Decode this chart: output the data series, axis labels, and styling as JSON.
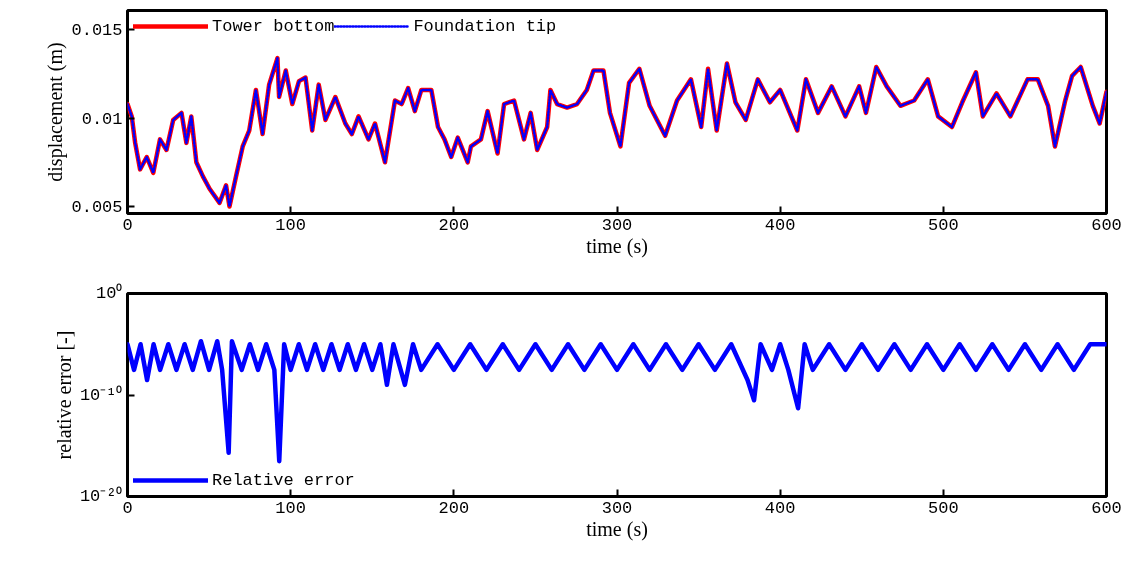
{
  "chart_data": [
    {
      "type": "line",
      "xlabel": "time (s)",
      "ylabel": "displacement (m)",
      "xlim": [
        0,
        600
      ],
      "xticks": [
        0,
        100,
        200,
        300,
        400,
        500,
        600
      ],
      "ylim": [
        0.0046,
        0.0161
      ],
      "yticks": [
        0.005,
        0.01,
        0.015
      ],
      "legend": "top left",
      "x": [
        0,
        2.6,
        4.7,
        7.7,
        11.8,
        15.8,
        19.9,
        23.9,
        28.0,
        33.1,
        36.1,
        39.1,
        42.2,
        46.2,
        50.3,
        56.4,
        60.4,
        62.5,
        66.5,
        70.6,
        74.6,
        78.7,
        82.8,
        86.8,
        91.9,
        92.9,
        97.0,
        101.0,
        105.1,
        109.1,
        113.2,
        117.2,
        121.3,
        127.4,
        133.5,
        137.5,
        141.6,
        147.7,
        151.7,
        157.8,
        163.9,
        168.0,
        172.0,
        176.1,
        180.1,
        186.2,
        190.3,
        194.3,
        198.4,
        202.4,
        208.5,
        210.5,
        216.6,
        220.7,
        226.8,
        230.8,
        236.9,
        243.0,
        247.1,
        251.1,
        257.2,
        259.2,
        263.3,
        269.4,
        275.5,
        281.5,
        285.6,
        291.7,
        295.7,
        302.1,
        307.4,
        313.7,
        320.0,
        329.5,
        336.8,
        345.3,
        351.6,
        355.8,
        361.1,
        367.4,
        372.6,
        378.9,
        386.3,
        393.7,
        400.0,
        410.5,
        415.8,
        423.2,
        431.6,
        440.0,
        448.4,
        452.6,
        458.9,
        465.3,
        473.7,
        482.1,
        490.5,
        496.8,
        505.3,
        511.6,
        520.0,
        524.2,
        532.6,
        541.1,
        551.6,
        557.9,
        564.2,
        568.4,
        574.7,
        578.9,
        584.2,
        591.6,
        595.8,
        600
      ],
      "series": [
        {
          "name": "Tower bottom",
          "color": "#ff0000",
          "line_style": "solid",
          "values": [
            0.0108,
            0.0101,
            0.0086,
            0.0071,
            0.0078,
            0.0069,
            0.0088,
            0.0082,
            0.0099,
            0.0103,
            0.0086,
            0.0101,
            0.0075,
            0.0067,
            0.006,
            0.0052,
            0.0062,
            0.005,
            0.0067,
            0.0084,
            0.0093,
            0.0116,
            0.0091,
            0.0119,
            0.0134,
            0.0112,
            0.0127,
            0.0108,
            0.0121,
            0.0123,
            0.0093,
            0.0119,
            0.0099,
            0.0112,
            0.0097,
            0.0091,
            0.0101,
            0.0088,
            0.0097,
            0.0075,
            0.011,
            0.0108,
            0.0117,
            0.0104,
            0.0116,
            0.0116,
            0.0095,
            0.0088,
            0.0078,
            0.0089,
            0.0075,
            0.0084,
            0.0088,
            0.0104,
            0.008,
            0.0108,
            0.011,
            0.0088,
            0.0103,
            0.0082,
            0.0095,
            0.0116,
            0.0108,
            0.0106,
            0.0108,
            0.0116,
            0.0127,
            0.0127,
            0.0103,
            0.0084,
            0.012,
            0.0128,
            0.0107,
            0.009,
            0.011,
            0.0122,
            0.0095,
            0.0128,
            0.0093,
            0.0131,
            0.0109,
            0.0099,
            0.0122,
            0.0109,
            0.0116,
            0.0093,
            0.0122,
            0.0103,
            0.0118,
            0.0101,
            0.0118,
            0.0103,
            0.0129,
            0.0118,
            0.0107,
            0.011,
            0.0122,
            0.0101,
            0.0095,
            0.0109,
            0.0126,
            0.0101,
            0.0114,
            0.0101,
            0.0122,
            0.0122,
            0.0107,
            0.0084,
            0.011,
            0.0124,
            0.0129,
            0.0107,
            0.0097,
            0.0115
          ]
        },
        {
          "name": "Foundation tip",
          "color": "#0000ff",
          "line_style": "dotted",
          "values": [
            0.0108,
            0.0101,
            0.0086,
            0.0071,
            0.0078,
            0.0069,
            0.0088,
            0.0082,
            0.0099,
            0.0103,
            0.0086,
            0.0101,
            0.0075,
            0.0067,
            0.006,
            0.0052,
            0.0062,
            0.005,
            0.0067,
            0.0084,
            0.0093,
            0.0116,
            0.0091,
            0.0119,
            0.0134,
            0.0112,
            0.0127,
            0.0108,
            0.0121,
            0.0123,
            0.0093,
            0.0119,
            0.0099,
            0.0112,
            0.0097,
            0.0091,
            0.0101,
            0.0088,
            0.0097,
            0.0075,
            0.011,
            0.0108,
            0.0117,
            0.0104,
            0.0116,
            0.0116,
            0.0095,
            0.0088,
            0.0078,
            0.0089,
            0.0075,
            0.0084,
            0.0088,
            0.0104,
            0.008,
            0.0108,
            0.011,
            0.0088,
            0.0103,
            0.0082,
            0.0095,
            0.0116,
            0.0108,
            0.0106,
            0.0108,
            0.0116,
            0.0127,
            0.0127,
            0.0103,
            0.0084,
            0.012,
            0.0128,
            0.0107,
            0.009,
            0.011,
            0.0122,
            0.0095,
            0.0128,
            0.0093,
            0.0131,
            0.0109,
            0.0099,
            0.0122,
            0.0109,
            0.0116,
            0.0093,
            0.0122,
            0.0103,
            0.0118,
            0.0101,
            0.0118,
            0.0103,
            0.0129,
            0.0118,
            0.0107,
            0.011,
            0.0122,
            0.0101,
            0.0095,
            0.0109,
            0.0126,
            0.0101,
            0.0114,
            0.0101,
            0.0122,
            0.0122,
            0.0107,
            0.0084,
            0.011,
            0.0124,
            0.0129,
            0.0107,
            0.0097,
            0.0115
          ]
        }
      ]
    },
    {
      "type": "line",
      "xlabel": "time (s)",
      "ylabel": "relative error [-]",
      "xlim": [
        0,
        600
      ],
      "xticks": [
        0,
        100,
        200,
        300,
        400,
        500,
        600
      ],
      "log": "y",
      "ylim": [
        1e-20,
        1
      ],
      "yticks": [
        {
          "value": 1e-20,
          "label": "10⁻²⁰"
        },
        {
          "value": 1e-10,
          "label": "10⁻¹⁰"
        },
        {
          "value": 1,
          "label": "10⁰"
        }
      ],
      "legend": "bottom left",
      "x": [
        0,
        4,
        8,
        12,
        16,
        20,
        25,
        30,
        35,
        40,
        45,
        50,
        55,
        58,
        62,
        64,
        70,
        75,
        80,
        85,
        90,
        93,
        96,
        100,
        105,
        110,
        115,
        120,
        125,
        130,
        135,
        140,
        145,
        150,
        155,
        159,
        163,
        170,
        175,
        180,
        190,
        200,
        210,
        220,
        230,
        240,
        250,
        260,
        270,
        280,
        290,
        300,
        310,
        320,
        330,
        340,
        350,
        360,
        370,
        380,
        384,
        388,
        395,
        400,
        405,
        411,
        415,
        420,
        430,
        440,
        450,
        460,
        470,
        480,
        490,
        500,
        510,
        520,
        530,
        540,
        550,
        560,
        570,
        580,
        590,
        600
      ],
      "series": [
        {
          "name": "Relative error",
          "color": "#0000ff",
          "line_style": "solid",
          "values": [
            1e-05,
            3e-08,
            1e-05,
            3e-09,
            1e-05,
            3e-08,
            1e-05,
            3e-08,
            1e-05,
            3e-08,
            2e-05,
            3e-08,
            2e-05,
            3e-08,
            2e-16,
            2e-05,
            3e-08,
            1e-05,
            3e-08,
            1e-05,
            3e-08,
            3e-17,
            1e-05,
            3e-08,
            1e-05,
            3e-08,
            1e-05,
            3e-08,
            1e-05,
            3e-08,
            1e-05,
            3e-08,
            1e-05,
            3e-08,
            1e-05,
            1e-09,
            1e-05,
            1e-09,
            1e-05,
            3e-08,
            1e-05,
            3e-08,
            1e-05,
            3e-08,
            1e-05,
            3e-08,
            1e-05,
            3e-08,
            1e-05,
            3e-08,
            1e-05,
            3e-08,
            1e-05,
            3e-08,
            1e-05,
            3e-08,
            1e-05,
            3e-08,
            1e-05,
            3e-09,
            3e-11,
            1e-05,
            3e-08,
            1e-05,
            3e-08,
            5e-12,
            1e-05,
            3e-08,
            1e-05,
            3e-08,
            1e-05,
            3e-08,
            1e-05,
            3e-08,
            1e-05,
            3e-08,
            1e-05,
            3e-08,
            1e-05,
            3e-08,
            1e-05,
            3e-08,
            1e-05,
            3e-08,
            1e-05,
            1e-05
          ]
        }
      ]
    }
  ]
}
